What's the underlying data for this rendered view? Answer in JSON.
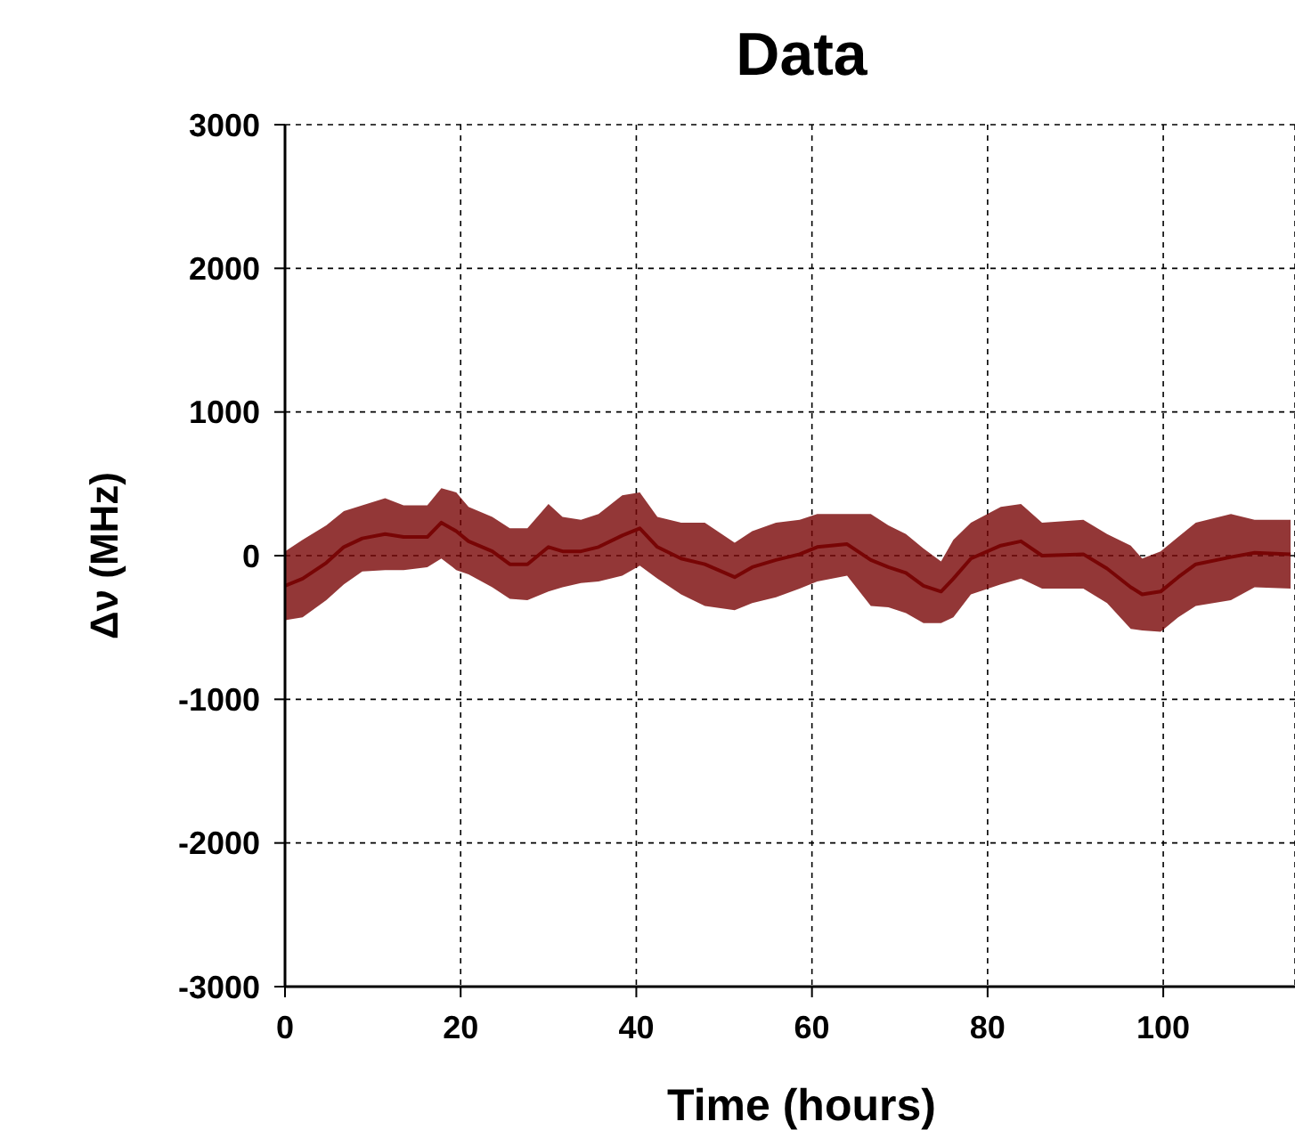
{
  "chart_data": {
    "type": "line",
    "title": "Data",
    "xlabel": "Time (hours)",
    "ylabel": "Δν (MHz)",
    "x": [
      0,
      2,
      4.7,
      6.7,
      8.8,
      11.4,
      13.5,
      16.2,
      17.8,
      19.5,
      20.9,
      23.6,
      25.6,
      27.6,
      30,
      31.6,
      33.7,
      35.7,
      38.4,
      40.4,
      42.4,
      45.1,
      47.8,
      51.2,
      53.2,
      55.9,
      58.6,
      60.6,
      64,
      66.7,
      68.7,
      70.7,
      72.7,
      74.7,
      76.1,
      78.1,
      81.5,
      83.8,
      86.2,
      90.9,
      93.6,
      96.3,
      97.6,
      99.7,
      101.7,
      103.7,
      107.7,
      110.4,
      114.5
    ],
    "series": [
      {
        "color": "#780505",
        "values": [
          -210,
          -160,
          -50,
          60,
          120,
          150,
          130,
          130,
          230,
          170,
          100,
          30,
          -60,
          -60,
          60,
          30,
          30,
          60,
          140,
          190,
          60,
          -20,
          -60,
          -150,
          -80,
          -30,
          10,
          60,
          80,
          -30,
          -80,
          -120,
          -210,
          -250,
          -160,
          -20,
          70,
          100,
          0,
          10,
          -90,
          -220,
          -270,
          -250,
          -150,
          -60,
          -10,
          20,
          10
        ],
        "lower": [
          -450,
          -430,
          -310,
          -200,
          -110,
          -100,
          -100,
          -80,
          -20,
          -100,
          -130,
          -220,
          -300,
          -310,
          -250,
          -220,
          -190,
          -180,
          -140,
          -70,
          -160,
          -270,
          -350,
          -380,
          -330,
          -290,
          -230,
          -180,
          -140,
          -350,
          -360,
          -400,
          -470,
          -470,
          -430,
          -270,
          -200,
          -160,
          -230,
          -230,
          -330,
          -510,
          -520,
          -530,
          -430,
          -350,
          -310,
          -220,
          -230
        ],
        "upper": [
          30,
          110,
          210,
          310,
          350,
          400,
          350,
          350,
          470,
          440,
          340,
          270,
          190,
          190,
          360,
          270,
          250,
          290,
          420,
          440,
          270,
          230,
          230,
          90,
          170,
          230,
          250,
          290,
          290,
          290,
          210,
          150,
          50,
          -40,
          110,
          230,
          340,
          360,
          230,
          250,
          150,
          70,
          -20,
          30,
          130,
          230,
          290,
          250,
          250
        ]
      }
    ],
    "xlim": [
      0,
      115
    ],
    "xticks": [
      0,
      20,
      40,
      60,
      80,
      100
    ],
    "ylim": [
      -3000,
      3000
    ],
    "yticks": [
      -3000,
      -2000,
      -1000,
      0,
      1000,
      2000,
      3000
    ],
    "grid": true,
    "legend": false,
    "marker": "none",
    "line_style": "solid"
  }
}
